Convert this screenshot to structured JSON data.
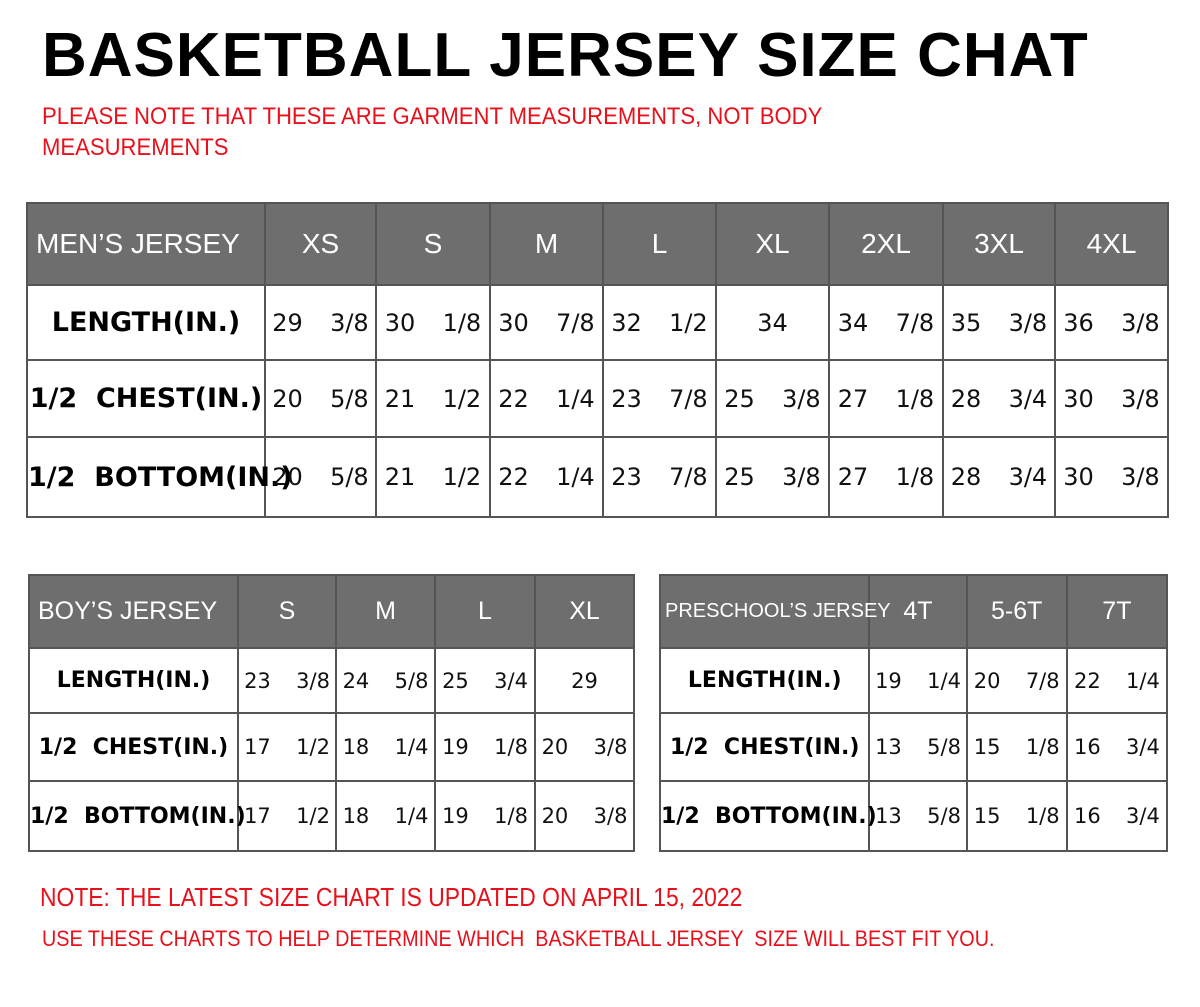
{
  "title": "BASKETBALL JERSEY SIZE CHAT",
  "subtitle_line1": "PLEASE NOTE THAT THESE ARE GARMENT MEASUREMENTS, NOT BODY",
  "subtitle_line2": "MEASUREMENTS",
  "colors": {
    "header_bg": "#6e6e6e",
    "note_red": "#e8101a"
  },
  "tables": [
    {
      "header": [
        "MEN’S JERSEY",
        "XS",
        "S",
        "M",
        "L",
        "XL",
        "2XL",
        "3XL",
        "4XL"
      ],
      "rows": [
        [
          "LENGTH(IN.)",
          "29  3/8",
          "30  1/8",
          "30  7/8",
          "32  1/2",
          "34",
          "34  7/8",
          "35  3/8",
          "36  3/8"
        ],
        [
          "1/2  CHEST(IN.)",
          "20  5/8",
          "21  1/2",
          "22  1/4",
          "23  7/8",
          "25  3/8",
          "27  1/8",
          "28  3/4",
          "30  3/8"
        ],
        [
          "1/2  BOTTOM(IN.)",
          "20  5/8",
          "21  1/2",
          "22  1/4",
          "23  7/8",
          "25  3/8",
          "27  1/8",
          "28  3/4",
          "30  3/8"
        ]
      ]
    },
    {
      "header": [
        "BOY’S JERSEY",
        "S",
        "M",
        "L",
        "XL"
      ],
      "rows": [
        [
          "LENGTH(IN.)",
          "23  3/8",
          "24  5/8",
          "25  3/4",
          "29"
        ],
        [
          "1/2  CHEST(IN.)",
          "17  1/2",
          "18  1/4",
          "19  1/8",
          "20  3/8"
        ],
        [
          "1/2  BOTTOM(IN.)",
          "17  1/2",
          "18  1/4",
          "19  1/8",
          "20  3/8"
        ]
      ]
    },
    {
      "header": [
        "PRESCHOOL’S JERSEY",
        "4T",
        "5-6T",
        "7T"
      ],
      "rows": [
        [
          "LENGTH(IN.)",
          "19  1/4",
          "20  7/8",
          "22  1/4"
        ],
        [
          "1/2  CHEST(IN.)",
          "13  5/8",
          "15  1/8",
          "16  3/4"
        ],
        [
          "1/2  BOTTOM(IN.)",
          "13  5/8",
          "15  1/8",
          "16  3/4"
        ]
      ]
    }
  ],
  "note1": "NOTE: THE LATEST SIZE CHART IS UPDATED ON APRIL 15, 2022",
  "note2": "USE THESE CHARTS TO HELP DETERMINE WHICH  BASKETBALL JERSEY  SIZE WILL BEST FIT YOU."
}
